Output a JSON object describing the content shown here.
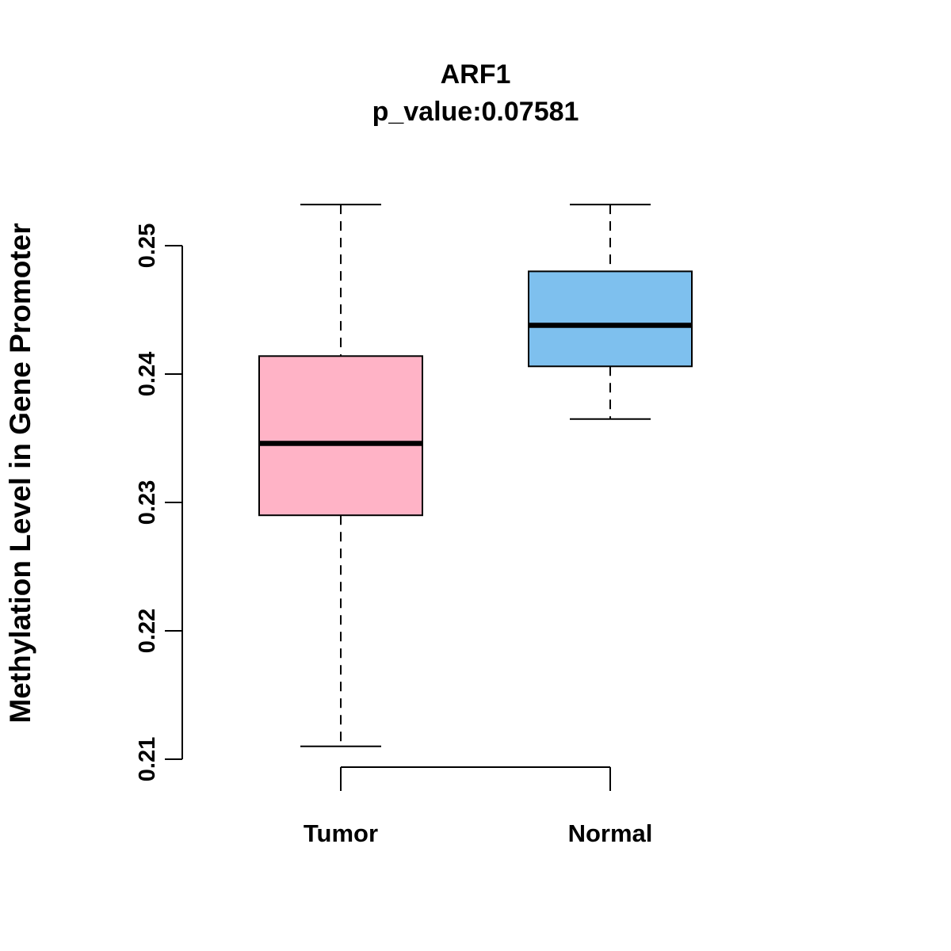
{
  "chart_data": {
    "type": "boxplot",
    "title": "ARF1",
    "subtitle": "p_value:0.07581",
    "ylabel": "Methylation Level in Gene Promoter",
    "xlabel": "",
    "categories": [
      "Tumor",
      "Normal"
    ],
    "yticks": [
      0.21,
      0.22,
      0.23,
      0.24,
      0.25
    ],
    "ytick_labels": [
      "0.21",
      "0.22",
      "0.23",
      "0.24",
      "0.25"
    ],
    "ylim": [
      0.2095,
      0.2535
    ],
    "grid": false,
    "legend": "none",
    "series": [
      {
        "name": "Tumor",
        "whisker_low": 0.211,
        "q1": 0.229,
        "median": 0.2346,
        "q3": 0.2414,
        "whisker_high": 0.2532,
        "fill_color": "#FFB3C6"
      },
      {
        "name": "Normal",
        "whisker_low": 0.2365,
        "q1": 0.2406,
        "median": 0.2438,
        "q3": 0.248,
        "whisker_high": 0.2532,
        "fill_color": "#7EC0EE"
      }
    ]
  },
  "colors": {
    "tumor_box": "#FFB3C6",
    "normal_box": "#7EC0EE",
    "axis": "#000000",
    "background": "#FFFFFF"
  }
}
